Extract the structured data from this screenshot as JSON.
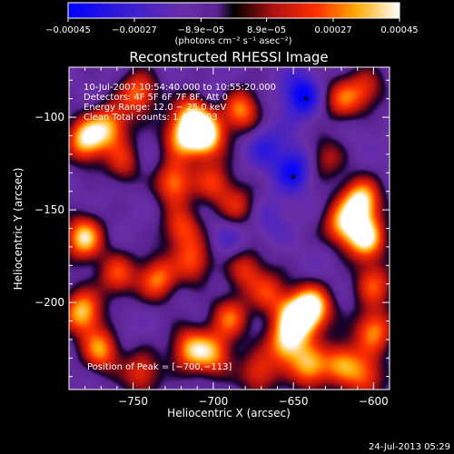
{
  "chart_data": {
    "type": "heatmap",
    "title": "Reconstructed RHESSI Image",
    "xlabel": "Heliocentric X (arcsec)",
    "ylabel": "Heliocentric Y (arcsec)",
    "xlim": [
      -790,
      -590
    ],
    "ylim": [
      -247,
      -73
    ],
    "x_ticks": [
      {
        "value": -750,
        "label": "−750"
      },
      {
        "value": -700,
        "label": "−700"
      },
      {
        "value": -650,
        "label": "−650"
      },
      {
        "value": -600,
        "label": "−600"
      }
    ],
    "y_ticks": [
      {
        "value": -100,
        "label": "−100"
      },
      {
        "value": -150,
        "label": "−150"
      },
      {
        "value": -200,
        "label": "−200"
      }
    ],
    "colorbar": {
      "units": "(photons cm⁻² s⁻¹ asec⁻²)",
      "range": [
        -0.00045,
        0.00045
      ],
      "ticks": [
        {
          "value": -0.00045,
          "label": "−0.00045"
        },
        {
          "value": -0.00027,
          "label": "−0.00027"
        },
        {
          "value": -8.9e-05,
          "label": "−8.9e−05"
        },
        {
          "value": 8.9e-05,
          "label": "8.9e−05"
        },
        {
          "value": 0.00027,
          "label": "0.00027"
        },
        {
          "value": 0.00045,
          "label": "0.00045"
        }
      ]
    },
    "info_lines": [
      "10-Jul-2007 10:54:40.000 to 10:55:20.000",
      "Detectors: 4F 5F 6F 7F 8F, Att 0",
      "Energy Range: 12.0 − 25.0 keV",
      "Clean    Total counts: 1.44E+03"
    ],
    "peak_text": "Position of Peak = [−700,−113]",
    "peak_position": [
      -700,
      -113
    ],
    "timestamp": "24-Jul-2013 05:29",
    "blobs": [
      {
        "x": -645,
        "y": -88,
        "value": -0.00045
      },
      {
        "x": -650,
        "y": -128,
        "value": -0.00042
      },
      {
        "x": -668,
        "y": -115,
        "value": -0.0003
      },
      {
        "x": -690,
        "y": -165,
        "value": -0.00025
      },
      {
        "x": -665,
        "y": -155,
        "value": -0.00022
      },
      {
        "x": -700,
        "y": -90,
        "value": -0.00022
      },
      {
        "x": -745,
        "y": -127,
        "value": -0.0002
      },
      {
        "x": -760,
        "y": -215,
        "value": -0.00018
      },
      {
        "x": -630,
        "y": -178,
        "value": -0.00015
      },
      {
        "x": -610,
        "y": -108,
        "value": -0.00015
      },
      {
        "x": -700,
        "y": -190,
        "value": -0.00015
      },
      {
        "x": -725,
        "y": -210,
        "value": -0.00012
      },
      {
        "x": -635,
        "y": -210,
        "value": -0.0001
      },
      {
        "x": -750,
        "y": -150,
        "value": -0.00012
      },
      {
        "x": -781,
        "y": -165,
        "value": 0.0004
      },
      {
        "x": -780,
        "y": -112,
        "value": 0.0004
      },
      {
        "x": -765,
        "y": -105,
        "value": 0.0003
      },
      {
        "x": -782,
        "y": -205,
        "value": 0.00038
      },
      {
        "x": -770,
        "y": -225,
        "value": 0.00032
      },
      {
        "x": -715,
        "y": -225,
        "value": 0.0003
      },
      {
        "x": -700,
        "y": -228,
        "value": 0.00025
      },
      {
        "x": -690,
        "y": -208,
        "value": 0.00024
      },
      {
        "x": -705,
        "y": -110,
        "value": 0.00045
      },
      {
        "x": -720,
        "y": -110,
        "value": 0.0003
      },
      {
        "x": -725,
        "y": -135,
        "value": 0.0003
      },
      {
        "x": -712,
        "y": -98,
        "value": 0.00028
      },
      {
        "x": -720,
        "y": -160,
        "value": 0.00022
      },
      {
        "x": -700,
        "y": -135,
        "value": 0.00018
      },
      {
        "x": -712,
        "y": -178,
        "value": 0.00022
      },
      {
        "x": -735,
        "y": -187,
        "value": 0.00028
      },
      {
        "x": -760,
        "y": -185,
        "value": 0.00022
      },
      {
        "x": -747,
        "y": -87,
        "value": 0.00028
      },
      {
        "x": -683,
        "y": -96,
        "value": 0.0003
      },
      {
        "x": -755,
        "y": -125,
        "value": 0.00018
      },
      {
        "x": -685,
        "y": -148,
        "value": 0.00015
      },
      {
        "x": -648,
        "y": -208,
        "value": 0.00042
      },
      {
        "x": -638,
        "y": -202,
        "value": 0.00038
      },
      {
        "x": -655,
        "y": -222,
        "value": 0.00035
      },
      {
        "x": -640,
        "y": -235,
        "value": 0.00032
      },
      {
        "x": -620,
        "y": -232,
        "value": 0.00026
      },
      {
        "x": -600,
        "y": -215,
        "value": 0.0003
      },
      {
        "x": -605,
        "y": -165,
        "value": 0.00042
      },
      {
        "x": -608,
        "y": -145,
        "value": 0.00045
      },
      {
        "x": -620,
        "y": -158,
        "value": 0.0003
      },
      {
        "x": -600,
        "y": -190,
        "value": 0.00022
      },
      {
        "x": -605,
        "y": -240,
        "value": 0.00022
      },
      {
        "x": -620,
        "y": -90,
        "value": 0.0002
      },
      {
        "x": -672,
        "y": -238,
        "value": 0.0002
      },
      {
        "x": -745,
        "y": -238,
        "value": 0.0002
      },
      {
        "x": -680,
        "y": -182,
        "value": 0.00018
      },
      {
        "x": -665,
        "y": -195,
        "value": 0.00018
      },
      {
        "x": -630,
        "y": -122,
        "value": 0.00012
      },
      {
        "x": -605,
        "y": -85,
        "value": 0.00015
      }
    ],
    "markers": [
      {
        "x": -642,
        "y": -90
      },
      {
        "x": -650,
        "y": -132
      }
    ]
  }
}
